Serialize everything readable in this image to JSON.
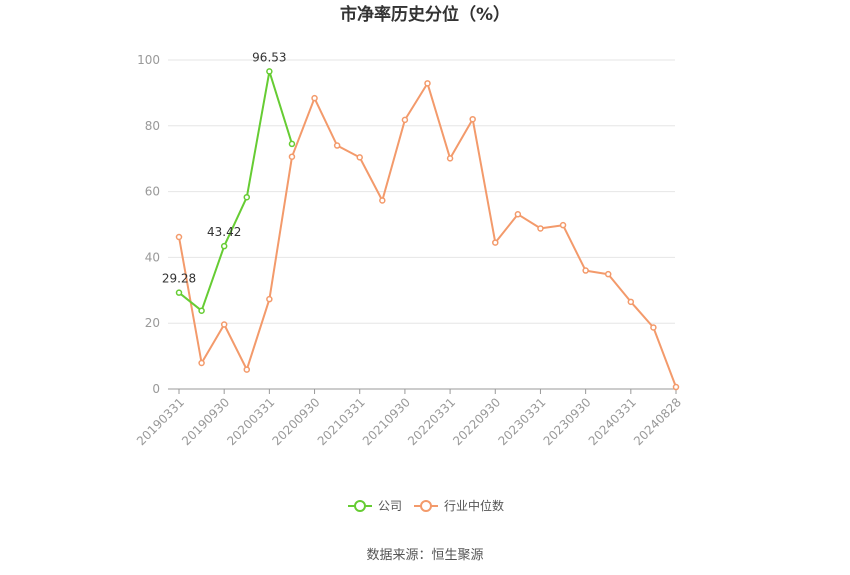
{
  "chart_data": {
    "type": "line",
    "title": "市净率历史分位（%）",
    "xlabel": "",
    "ylabel": "",
    "ylim": [
      0,
      100
    ],
    "yticks": [
      0,
      20,
      40,
      60,
      80,
      100
    ],
    "x": [
      "20190331",
      "20190630",
      "20190930",
      "20191231",
      "20200331",
      "20200630",
      "20200930",
      "20201231",
      "20210331",
      "20210630",
      "20210930",
      "20211231",
      "20220331",
      "20220630",
      "20220930",
      "20221231",
      "20230331",
      "20230630",
      "20230930",
      "20231231",
      "20240331",
      "20240630",
      "20240828"
    ],
    "xtick_labels": [
      "20190331",
      "20190930",
      "20200331",
      "20200930",
      "20210331",
      "20210930",
      "20220331",
      "20220930",
      "20230331",
      "20230930",
      "20240331",
      "20240828"
    ],
    "series": [
      {
        "name": "公司",
        "color": "#66cc33",
        "values": [
          29.28,
          23.8,
          43.42,
          58.3,
          96.53,
          74.5,
          null,
          null,
          null,
          null,
          null,
          null,
          null,
          null,
          null,
          null,
          null,
          null,
          null,
          null,
          null,
          null,
          null
        ],
        "labels": {
          "0": "29.28",
          "2": "43.42",
          "4": "96.53"
        }
      },
      {
        "name": "行业中位数",
        "color": "#f39a6b",
        "values": [
          46.2,
          7.9,
          19.6,
          5.9,
          27.3,
          70.6,
          88.4,
          74.0,
          70.4,
          57.3,
          81.8,
          92.9,
          70.1,
          82.0,
          44.5,
          53.1,
          48.8,
          49.8,
          36.0,
          34.9,
          26.5,
          18.7,
          0.6
        ]
      }
    ],
    "legend_position": "bottom-center",
    "grid": true
  },
  "source_text": "数据来源：恒生聚源"
}
